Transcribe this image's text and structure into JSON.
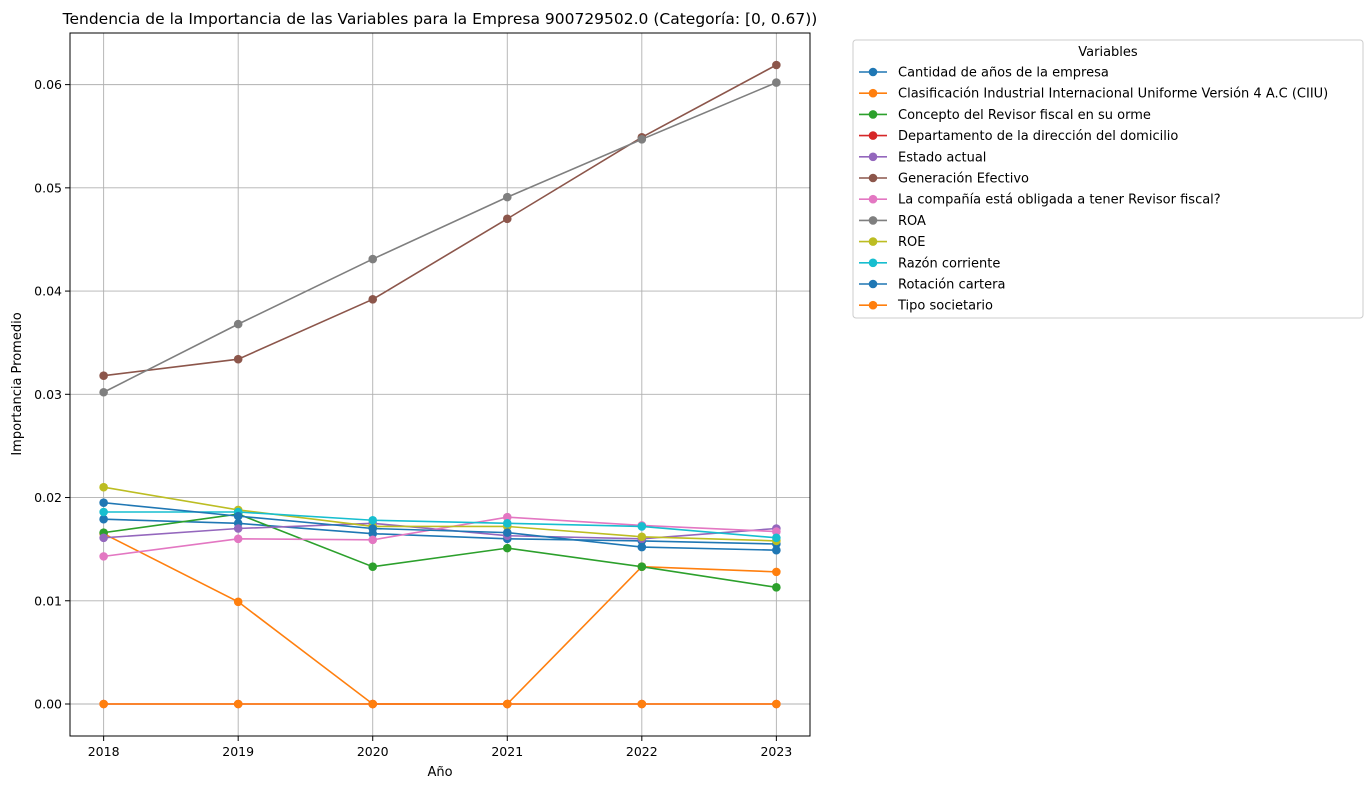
{
  "chart_data": {
    "type": "line",
    "title": "Tendencia de la Importancia de las Variables para la Empresa 900729502.0 (Categoría: [0, 0.67))",
    "xlabel": "Año",
    "ylabel": "Importancia Promedio",
    "x": [
      2018,
      2019,
      2020,
      2021,
      2022,
      2023
    ],
    "xticks": [
      "2018",
      "2019",
      "2020",
      "2021",
      "2022",
      "2023"
    ],
    "yticks": [
      "0.00",
      "0.01",
      "0.02",
      "0.03",
      "0.04",
      "0.05",
      "0.06"
    ],
    "xlim": [
      2017.75,
      2023.25
    ],
    "ylim": [
      -0.0031,
      0.065
    ],
    "grid": true,
    "legend": {
      "title": "Variables",
      "placement": "outside-right"
    },
    "series": [
      {
        "name": "Cantidad de años de la empresa",
        "color": "#1f77b4",
        "values": [
          0.0179,
          0.0175,
          0.0165,
          0.016,
          0.0158,
          0.0155
        ]
      },
      {
        "name": "Clasificación Industrial Internacional Uniforme Versión 4 A.C (CIIU)",
        "color": "#ff7f0e",
        "values": [
          0.0165,
          0.0099,
          0.0,
          0.0,
          0.0133,
          0.0128
        ]
      },
      {
        "name": "Concepto del Revisor fiscal en su orme",
        "color": "#2ca02c",
        "values": [
          0.0166,
          0.0184,
          0.0133,
          0.0151,
          0.0133,
          0.0113
        ]
      },
      {
        "name": "Departamento de la dirección del domicilio",
        "color": "#d62728",
        "values": [
          0.0,
          0.0,
          0.0,
          0.0,
          0.0,
          0.0
        ]
      },
      {
        "name": "Estado actual",
        "color": "#9467bd",
        "values": [
          0.0161,
          0.017,
          0.0175,
          0.0163,
          0.016,
          0.017
        ]
      },
      {
        "name": "Generación Efectivo",
        "color": "#8c564b",
        "values": [
          0.0318,
          0.0334,
          0.0392,
          0.047,
          0.0549,
          0.0619
        ]
      },
      {
        "name": "La compañía está obligada a tener Revisor fiscal?",
        "color": "#e377c2",
        "values": [
          0.0143,
          0.016,
          0.0159,
          0.0181,
          0.0173,
          0.0167
        ]
      },
      {
        "name": "ROA",
        "color": "#7f7f7f",
        "values": [
          0.0302,
          0.0368,
          0.0431,
          0.0491,
          0.0547,
          0.0602
        ]
      },
      {
        "name": "ROE",
        "color": "#bcbd22",
        "values": [
          0.021,
          0.0188,
          0.0172,
          0.0172,
          0.0162,
          0.0158
        ]
      },
      {
        "name": "Razón corriente",
        "color": "#17becf",
        "values": [
          0.0186,
          0.0186,
          0.0178,
          0.0175,
          0.0172,
          0.0161
        ]
      },
      {
        "name": "Rotación cartera",
        "color": "#1f77b4",
        "values": [
          0.0195,
          0.0182,
          0.017,
          0.0166,
          0.0152,
          0.0149
        ]
      },
      {
        "name": "Tipo societario",
        "color": "#ff7f0e",
        "values": [
          0.0,
          0.0,
          0.0,
          0.0,
          0.0,
          0.0
        ]
      }
    ]
  }
}
